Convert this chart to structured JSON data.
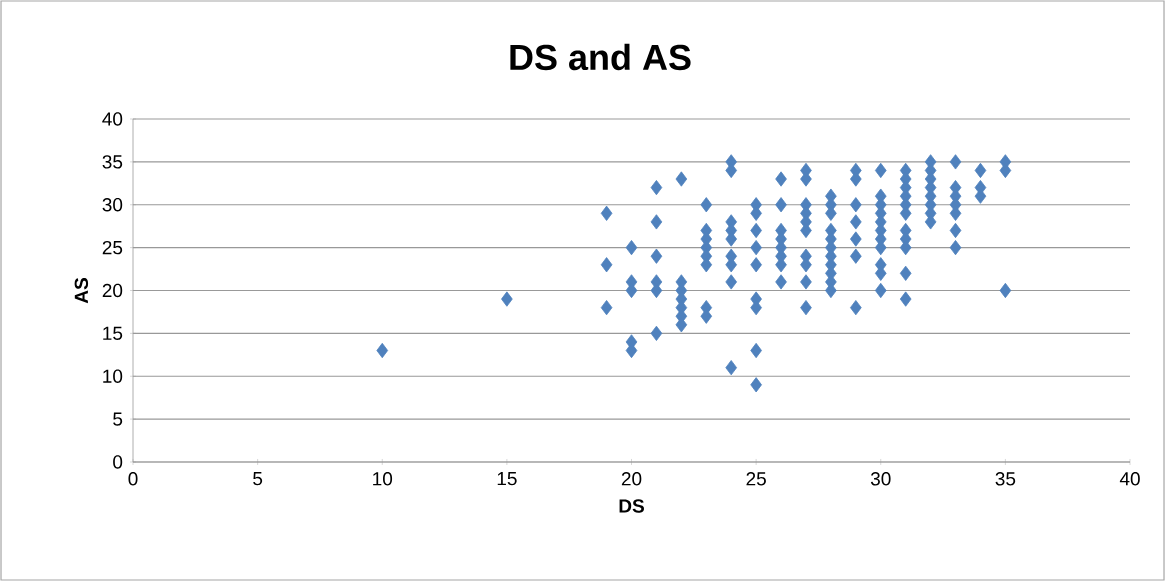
{
  "chart_data": {
    "type": "scatter",
    "title": "DS and AS",
    "xlabel": "DS",
    "ylabel": "AS",
    "x": [
      10,
      15,
      19,
      19,
      19,
      20,
      20,
      20,
      20,
      20,
      21,
      21,
      21,
      21,
      21,
      21,
      22,
      22,
      22,
      22,
      22,
      22,
      22,
      23,
      23,
      23,
      23,
      23,
      23,
      23,
      23,
      24,
      24,
      24,
      24,
      24,
      24,
      24,
      24,
      24,
      25,
      25,
      25,
      25,
      25,
      25,
      25,
      25,
      25,
      26,
      26,
      26,
      26,
      26,
      26,
      26,
      26,
      27,
      27,
      27,
      27,
      27,
      27,
      27,
      27,
      27,
      27,
      28,
      28,
      28,
      28,
      28,
      28,
      28,
      28,
      28,
      28,
      28,
      29,
      29,
      29,
      29,
      29,
      29,
      29,
      30,
      30,
      30,
      30,
      30,
      30,
      30,
      30,
      30,
      30,
      30,
      31,
      31,
      31,
      31,
      31,
      31,
      31,
      31,
      31,
      31,
      31,
      32,
      32,
      32,
      32,
      32,
      32,
      32,
      32,
      33,
      33,
      33,
      33,
      33,
      33,
      33,
      34,
      34,
      34,
      35,
      35,
      35
    ],
    "values": [
      13,
      19,
      29,
      23,
      18,
      25,
      21,
      20,
      14,
      13,
      32,
      28,
      24,
      21,
      20,
      15,
      33,
      21,
      20,
      19,
      18,
      17,
      16,
      30,
      27,
      26,
      25,
      24,
      23,
      18,
      17,
      35,
      34,
      28,
      27,
      26,
      24,
      23,
      21,
      11,
      30,
      29,
      27,
      25,
      23,
      19,
      18,
      13,
      9,
      33,
      30,
      27,
      26,
      25,
      24,
      23,
      21,
      34,
      33,
      30,
      29,
      28,
      27,
      24,
      23,
      21,
      18,
      31,
      30,
      29,
      27,
      26,
      25,
      24,
      23,
      22,
      21,
      20,
      34,
      33,
      30,
      28,
      26,
      24,
      18,
      34,
      31,
      30,
      29,
      28,
      27,
      26,
      25,
      23,
      22,
      20,
      34,
      33,
      32,
      31,
      30,
      29,
      27,
      26,
      25,
      22,
      19,
      35,
      34,
      33,
      32,
      31,
      30,
      29,
      28,
      35,
      32,
      31,
      30,
      29,
      27,
      25,
      34,
      32,
      31,
      35,
      34,
      20
    ],
    "color": "#4f81bd",
    "marker": "diamond",
    "grid": "y",
    "xlim": [
      0,
      40
    ],
    "ylim": [
      0,
      40
    ],
    "xticks": [
      0,
      5,
      10,
      15,
      20,
      25,
      30,
      35,
      40
    ],
    "yticks": [
      0,
      5,
      10,
      15,
      20,
      25,
      30,
      35,
      40
    ]
  }
}
